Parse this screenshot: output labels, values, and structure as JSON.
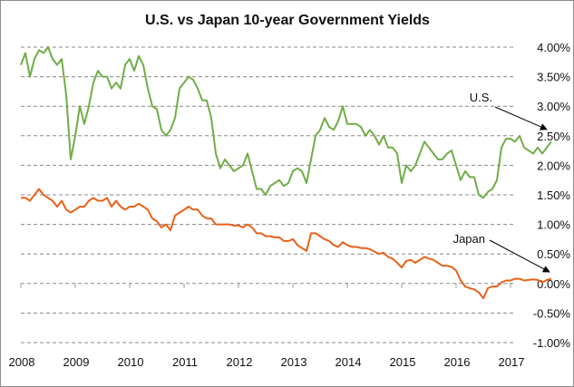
{
  "chart_data": {
    "type": "line",
    "title": "U.S. vs Japan  10-year Government Yields",
    "xlabel": "",
    "ylabel": "",
    "x_tick_labels": [
      "2008",
      "2009",
      "2010",
      "2011",
      "2012",
      "2013",
      "2014",
      "2015",
      "2016",
      "2017"
    ],
    "x_range": [
      2008,
      2017.2
    ],
    "y_tick_labels": [
      "4.00%",
      "3.50%",
      "3.00%",
      "2.50%",
      "2.00%",
      "1.50%",
      "1.00%",
      "0.50%",
      "0.00%",
      "-0.50%",
      "-1.00%"
    ],
    "y_ticks": [
      4.0,
      3.5,
      3.0,
      2.5,
      2.0,
      1.5,
      1.0,
      0.5,
      0.0,
      -0.5,
      -1.0
    ],
    "ylim": [
      -1.0,
      4.0
    ],
    "y_axis_side": "right",
    "grid": "horizontal-dashed",
    "legend": "none",
    "series": [
      {
        "name": "U.S.",
        "color": "#70ad47",
        "start_year": 2008,
        "step": "monthly",
        "values": [
          3.7,
          3.9,
          3.5,
          3.8,
          3.95,
          3.9,
          4.0,
          3.8,
          3.7,
          3.8,
          3.2,
          2.1,
          2.5,
          3.0,
          2.7,
          3.0,
          3.4,
          3.6,
          3.5,
          3.5,
          3.3,
          3.4,
          3.3,
          3.7,
          3.8,
          3.6,
          3.85,
          3.7,
          3.3,
          3.0,
          2.95,
          2.6,
          2.5,
          2.6,
          2.8,
          3.3,
          3.4,
          3.5,
          3.45,
          3.3,
          3.1,
          3.1,
          2.8,
          2.2,
          1.95,
          2.1,
          2.0,
          1.9,
          1.95,
          2.0,
          2.2,
          1.9,
          1.6,
          1.6,
          1.5,
          1.65,
          1.7,
          1.75,
          1.65,
          1.7,
          1.9,
          1.95,
          1.9,
          1.7,
          2.1,
          2.5,
          2.6,
          2.8,
          2.65,
          2.6,
          2.75,
          3.0,
          2.7,
          2.7,
          2.7,
          2.65,
          2.5,
          2.6,
          2.5,
          2.35,
          2.5,
          2.3,
          2.3,
          2.2,
          1.7,
          2.0,
          1.9,
          2.0,
          2.2,
          2.4,
          2.3,
          2.2,
          2.1,
          2.1,
          2.2,
          2.25,
          2.0,
          1.75,
          1.9,
          1.8,
          1.8,
          1.5,
          1.45,
          1.55,
          1.6,
          1.75,
          2.3,
          2.45,
          2.45,
          2.4,
          2.5,
          2.3,
          2.25,
          2.2,
          2.3,
          2.2,
          2.3,
          2.4
        ]
      },
      {
        "name": "Japan",
        "color": "#e8611a",
        "start_year": 2008,
        "step": "monthly",
        "values": [
          1.45,
          1.45,
          1.4,
          1.5,
          1.6,
          1.5,
          1.45,
          1.4,
          1.3,
          1.4,
          1.25,
          1.2,
          1.25,
          1.3,
          1.3,
          1.4,
          1.45,
          1.4,
          1.4,
          1.45,
          1.3,
          1.4,
          1.3,
          1.25,
          1.3,
          1.3,
          1.35,
          1.3,
          1.25,
          1.1,
          1.05,
          0.95,
          1.0,
          0.9,
          1.15,
          1.2,
          1.25,
          1.3,
          1.25,
          1.25,
          1.15,
          1.1,
          1.1,
          1.0,
          1.0,
          1.0,
          1.0,
          0.98,
          0.98,
          0.95,
          1.0,
          0.95,
          0.85,
          0.85,
          0.8,
          0.8,
          0.78,
          0.78,
          0.72,
          0.72,
          0.75,
          0.65,
          0.6,
          0.55,
          0.85,
          0.85,
          0.8,
          0.75,
          0.72,
          0.65,
          0.62,
          0.7,
          0.65,
          0.62,
          0.62,
          0.6,
          0.6,
          0.58,
          0.54,
          0.5,
          0.52,
          0.45,
          0.42,
          0.35,
          0.27,
          0.38,
          0.4,
          0.35,
          0.4,
          0.45,
          0.42,
          0.4,
          0.35,
          0.3,
          0.3,
          0.28,
          0.22,
          0.05,
          -0.05,
          -0.08,
          -0.1,
          -0.15,
          -0.25,
          -0.08,
          -0.05,
          -0.05,
          0.02,
          0.05,
          0.05,
          0.08,
          0.08,
          0.05,
          0.06,
          0.07,
          0.06,
          0.02,
          0.06,
          0.08
        ]
      }
    ],
    "annotations": [
      {
        "text": "U.S.",
        "series": "U.S.",
        "arrow": true
      },
      {
        "text": "Japan",
        "series": "Japan",
        "arrow": true
      }
    ]
  }
}
